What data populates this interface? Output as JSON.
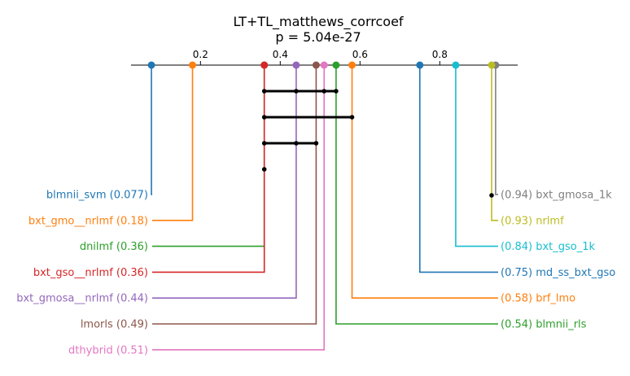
{
  "chart_data": {
    "type": "critical_difference",
    "title": "LT+TL_matthews_corrcoef",
    "subtitle": "p = 5.04e-27",
    "axis": {
      "ticks": [
        0.2,
        0.4,
        0.6,
        0.8
      ],
      "tick_labels": [
        "0.2",
        "0.4",
        "0.6",
        "0.8"
      ]
    },
    "methods": [
      {
        "name": "blmnii_svm",
        "value": 0.077,
        "label": "blmnii_svm (0.077)",
        "side": "left",
        "color": "#1f77b4"
      },
      {
        "name": "bxt_gmo__nrlmf",
        "value": 0.18,
        "label": "bxt_gmo__nrlmf (0.18)",
        "side": "left",
        "color": "#ff7f0e"
      },
      {
        "name": "dnilmf",
        "value": 0.36,
        "label": "dnilmf (0.36)",
        "side": "left",
        "color": "#2ca02c"
      },
      {
        "name": "bxt_gso__nrlmf",
        "value": 0.36,
        "label": "bxt_gso__nrlmf (0.36)",
        "side": "left",
        "color": "#d62728"
      },
      {
        "name": "bxt_gmosa__nrlmf",
        "value": 0.44,
        "label": "bxt_gmosa__nrlmf (0.44)",
        "side": "left",
        "color": "#9467bd"
      },
      {
        "name": "lmorls",
        "value": 0.49,
        "label": "lmorls (0.49)",
        "side": "left",
        "color": "#8c564b"
      },
      {
        "name": "dthybrid",
        "value": 0.51,
        "label": "dthybrid (0.51)",
        "side": "left",
        "color": "#e377c2"
      },
      {
        "name": "bxt_gmosa_1k",
        "value": 0.94,
        "label": "(0.94) bxt_gmosa_1k",
        "side": "right",
        "color": "#7f7f7f"
      },
      {
        "name": "nrlmf",
        "value": 0.93,
        "label": "(0.93) nrlmf",
        "side": "right",
        "color": "#bcbd22"
      },
      {
        "name": "bxt_gso_1k",
        "value": 0.84,
        "label": "(0.84) bxt_gso_1k",
        "side": "right",
        "color": "#17becf"
      },
      {
        "name": "md_ss_bxt_gso",
        "value": 0.75,
        "label": "(0.75) md_ss_bxt_gso",
        "side": "right",
        "color": "#1f77b4"
      },
      {
        "name": "brf_lmo",
        "value": 0.58,
        "label": "(0.58) brf_lmo",
        "side": "right",
        "color": "#ff7f0e"
      },
      {
        "name": "blmnii_rls",
        "value": 0.54,
        "label": "(0.54) blmnii_rls",
        "side": "right",
        "color": "#2ca02c"
      }
    ],
    "cliques": [
      [
        0.36,
        0.44,
        0.51,
        0.54
      ],
      [
        0.36,
        0.58
      ],
      [
        0.36,
        0.44,
        0.49
      ],
      [
        0.36
      ],
      [
        0.93
      ]
    ]
  }
}
